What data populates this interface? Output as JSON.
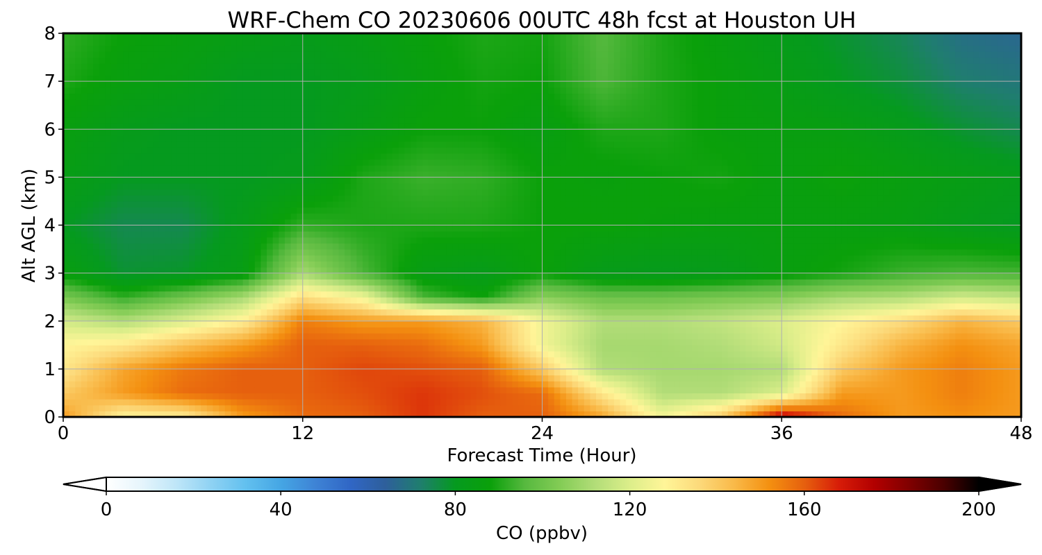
{
  "chart_data": [
    {
      "type": "heatmap",
      "title": "WRF-Chem CO  20230606 00UTC 48h fcst at Houston UH",
      "xlabel": "Forecast Time (Hour)",
      "ylabel": "Alt AGL (km)",
      "xlim": [
        0,
        48
      ],
      "ylim": [
        0,
        8
      ],
      "x_ticks": [
        0,
        12,
        24,
        36,
        48
      ],
      "y_ticks": [
        0,
        1,
        2,
        3,
        4,
        5,
        6,
        7,
        8
      ],
      "grid": true,
      "x": [
        0,
        3,
        6,
        9,
        12,
        15,
        18,
        21,
        24,
        27,
        30,
        33,
        36,
        39,
        42,
        45,
        48
      ],
      "y": [
        0,
        0.5,
        1,
        1.5,
        2,
        2.5,
        3,
        4,
        5,
        6,
        7,
        8
      ],
      "values_unit": "ppbv",
      "values": [
        [
          150,
          128,
          130,
          150,
          158,
          160,
          165,
          160,
          160,
          148,
          125,
          140,
          175,
          158,
          150,
          152,
          150
        ],
        [
          140,
          150,
          158,
          160,
          160,
          162,
          165,
          162,
          158,
          132,
          112,
          112,
          120,
          150,
          150,
          155,
          150
        ],
        [
          132,
          148,
          156,
          160,
          160,
          163,
          162,
          160,
          140,
          112,
          110,
          110,
          112,
          140,
          150,
          155,
          150
        ],
        [
          128,
          132,
          142,
          150,
          160,
          160,
          158,
          150,
          125,
          110,
          110,
          112,
          118,
          132,
          145,
          152,
          148
        ],
        [
          118,
          112,
          120,
          130,
          155,
          150,
          150,
          145,
          125,
          112,
          112,
          115,
          120,
          128,
          135,
          145,
          140
        ],
        [
          102,
          92,
          100,
          110,
          135,
          125,
          95,
          88,
          105,
          100,
          100,
          102,
          104,
          110,
          112,
          118,
          115
        ],
        [
          86,
          78,
          79,
          84,
          110,
          95,
          84,
          82,
          88,
          82,
          81,
          82,
          86,
          89,
          93,
          95,
          94
        ],
        [
          80,
          75,
          75,
          82,
          92,
          90,
          90,
          90,
          88,
          88,
          87,
          86,
          86,
          86,
          85,
          82,
          80
        ],
        [
          84,
          80,
          80,
          80,
          82,
          90,
          93,
          92,
          88,
          87,
          88,
          89,
          86,
          88,
          86,
          84,
          82
        ],
        [
          86,
          82,
          80,
          80,
          80,
          84,
          88,
          88,
          85,
          90,
          90,
          87,
          86,
          85,
          82,
          78,
          75
        ],
        [
          90,
          86,
          84,
          80,
          80,
          82,
          86,
          89,
          88,
          95,
          90,
          87,
          84,
          80,
          77,
          72,
          70
        ],
        [
          92,
          88,
          86,
          84,
          82,
          84,
          87,
          90,
          89,
          96,
          90,
          86,
          82,
          78,
          74,
          68,
          66
        ]
      ]
    },
    {
      "type": "colorbar",
      "label": "CO  (ppbv)",
      "range": [
        0,
        200
      ],
      "ticks": [
        0,
        40,
        80,
        120,
        160,
        200
      ],
      "extend": "both",
      "colors": [
        "#ffffff",
        "#e6f5fc",
        "#bfe6f8",
        "#8fd2f3",
        "#62c0ef",
        "#45a6e4",
        "#3e83d5",
        "#3066c5",
        "#2e5f9b",
        "#1f7e6e",
        "#059a1f",
        "#0aa00a",
        "#57b93f",
        "#83cc55",
        "#b2dd78",
        "#dcee8a",
        "#fff598",
        "#fcd97a",
        "#f9b948",
        "#f49010",
        "#e6600e",
        "#d71c08",
        "#b20000",
        "#800000",
        "#4a0000",
        "#000000"
      ],
      "extend_min_color": "#ffffff",
      "extend_max_color": "#000000"
    }
  ]
}
